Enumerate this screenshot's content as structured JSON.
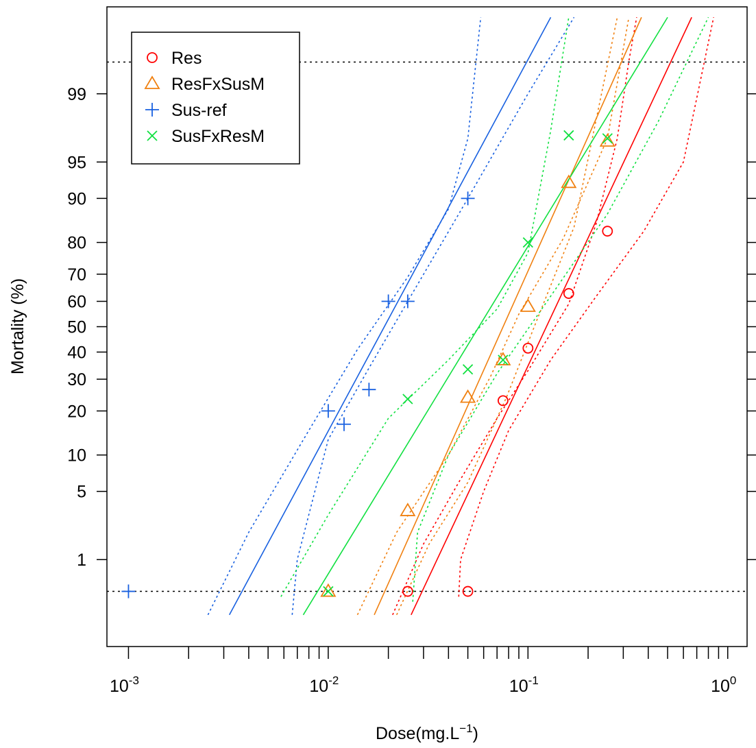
{
  "chart_data": {
    "type": "scatter",
    "title": "",
    "xlabel": "Dose(mg.L",
    "xlabel_superscript": "−1",
    "xlabel_close": ")",
    "ylabel": "Mortality (%)",
    "x_scale": "log10",
    "y_scale": "probit",
    "xlim": [
      0.00078,
      1.25
    ],
    "ylim_percent": [
      0.07,
      99.93
    ],
    "x_tick_labels": [
      {
        "value": 0.001,
        "base": "10",
        "exp": "-3"
      },
      {
        "value": 0.01,
        "base": "10",
        "exp": "-2"
      },
      {
        "value": 0.1,
        "base": "10",
        "exp": "-1"
      },
      {
        "value": 1,
        "base": "10",
        "exp": "0"
      }
    ],
    "x_minor_ticks": [
      0.002,
      0.003,
      0.004,
      0.005,
      0.006,
      0.007,
      0.008,
      0.009,
      0.02,
      0.03,
      0.04,
      0.05,
      0.06,
      0.07,
      0.08,
      0.09,
      0.2,
      0.3,
      0.4,
      0.5,
      0.6,
      0.7,
      0.8,
      0.9
    ],
    "y_ticks": [
      1,
      5,
      10,
      20,
      30,
      40,
      50,
      60,
      70,
      80,
      90,
      95,
      99
    ],
    "y_tick_labels": [
      "1",
      "5",
      "10",
      "20",
      "30",
      "40",
      "50",
      "60",
      "70",
      "80",
      "90",
      "95",
      "99"
    ],
    "reference_lines_percent": [
      0.41,
      99.59
    ],
    "legend_position": "top-left",
    "series": [
      {
        "name": "Res",
        "color": "#ff0000",
        "marker": "circle",
        "points": [
          [
            0.025,
            0.41
          ],
          [
            0.05,
            0.41
          ],
          [
            0.075,
            23
          ],
          [
            0.1,
            41.5
          ],
          [
            0.16,
            63
          ],
          [
            0.25,
            83
          ]
        ],
        "fit": {
          "x_lo": 0.026,
          "x_hi": 0.66,
          "y_lo": 0.2,
          "y_hi": 99.9
        },
        "ci_lower": [
          [
            0.045,
            0.35
          ],
          [
            0.046,
            1
          ],
          [
            0.06,
            5
          ],
          [
            0.08,
            15
          ],
          [
            0.13,
            37
          ],
          [
            0.22,
            62
          ],
          [
            0.38,
            83
          ],
          [
            0.6,
            95
          ],
          [
            0.85,
            99.9
          ]
        ],
        "ci_upper": [
          [
            0.021,
            0.2
          ],
          [
            0.03,
            1.5
          ],
          [
            0.045,
            6
          ],
          [
            0.07,
            18
          ],
          [
            0.1,
            33
          ],
          [
            0.16,
            59
          ],
          [
            0.22,
            85
          ],
          [
            0.28,
            97
          ],
          [
            0.32,
            99.6
          ],
          [
            0.35,
            99.9
          ]
        ]
      },
      {
        "name": "ResFxSusM",
        "color": "#f08010",
        "marker": "triangle",
        "points": [
          [
            0.01,
            0.41
          ],
          [
            0.025,
            3.3
          ],
          [
            0.05,
            24
          ],
          [
            0.075,
            37
          ],
          [
            0.1,
            58
          ],
          [
            0.16,
            92.5
          ],
          [
            0.25,
            96.8
          ]
        ],
        "fit": {
          "x_lo": 0.017,
          "x_hi": 0.37,
          "y_lo": 0.2,
          "y_hi": 99.9
        },
        "ci_lower": [
          [
            0.022,
            0.2
          ],
          [
            0.032,
            1.5
          ],
          [
            0.05,
            6
          ],
          [
            0.078,
            24
          ],
          [
            0.11,
            52
          ],
          [
            0.17,
            84
          ],
          [
            0.28,
            99.9
          ]
        ],
        "ci_upper": [
          [
            0.014,
            0.2
          ],
          [
            0.022,
            2
          ],
          [
            0.04,
            10
          ],
          [
            0.065,
            31
          ],
          [
            0.09,
            55
          ],
          [
            0.15,
            81
          ],
          [
            0.25,
            97
          ],
          [
            0.32,
            99.9
          ]
        ]
      },
      {
        "name": "Sus-ref",
        "color": "#1860e0",
        "marker": "plus",
        "points": [
          [
            0.001,
            0.41
          ],
          [
            0.01,
            20
          ],
          [
            0.012,
            16.5
          ],
          [
            0.016,
            26.5
          ],
          [
            0.02,
            60
          ],
          [
            0.025,
            60
          ],
          [
            0.05,
            90
          ]
        ],
        "fit": {
          "x_lo": 0.0032,
          "x_hi": 0.13,
          "y_lo": 0.2,
          "y_hi": 99.9
        },
        "ci_lower": [
          [
            0.0066,
            0.2
          ],
          [
            0.007,
            1
          ],
          [
            0.01,
            13
          ],
          [
            0.016,
            34
          ],
          [
            0.025,
            60
          ],
          [
            0.05,
            90
          ],
          [
            0.1,
            99
          ],
          [
            0.17,
            99.9
          ]
        ],
        "ci_upper": [
          [
            0.0025,
            0.2
          ],
          [
            0.004,
            2
          ],
          [
            0.008,
            15
          ],
          [
            0.014,
            41
          ],
          [
            0.025,
            69
          ],
          [
            0.04,
            88
          ],
          [
            0.05,
            97
          ],
          [
            0.058,
            99.9
          ]
        ]
      },
      {
        "name": "SusFxResM",
        "color": "#10e040",
        "marker": "cross",
        "points": [
          [
            0.01,
            0.41
          ],
          [
            0.025,
            23.5
          ],
          [
            0.05,
            33.5
          ],
          [
            0.075,
            37
          ],
          [
            0.1,
            80
          ],
          [
            0.16,
            97.2
          ],
          [
            0.25,
            97
          ]
        ],
        "fit": {
          "x_lo": 0.0075,
          "x_hi": 0.5,
          "y_lo": 0.2,
          "y_hi": 99.9
        },
        "ci_lower": [
          [
            0.0265,
            0.3
          ],
          [
            0.028,
            2
          ],
          [
            0.04,
            10
          ],
          [
            0.07,
            32
          ],
          [
            0.13,
            62
          ],
          [
            0.25,
            87
          ],
          [
            0.45,
            98
          ],
          [
            0.8,
            99.9
          ]
        ],
        "ci_upper": [
          [
            0.0058,
            0.35
          ],
          [
            0.01,
            3
          ],
          [
            0.02,
            18
          ],
          [
            0.04,
            37
          ],
          [
            0.07,
            57
          ],
          [
            0.1,
            77
          ],
          [
            0.13,
            97.5
          ],
          [
            0.16,
            99.9
          ]
        ]
      }
    ]
  }
}
